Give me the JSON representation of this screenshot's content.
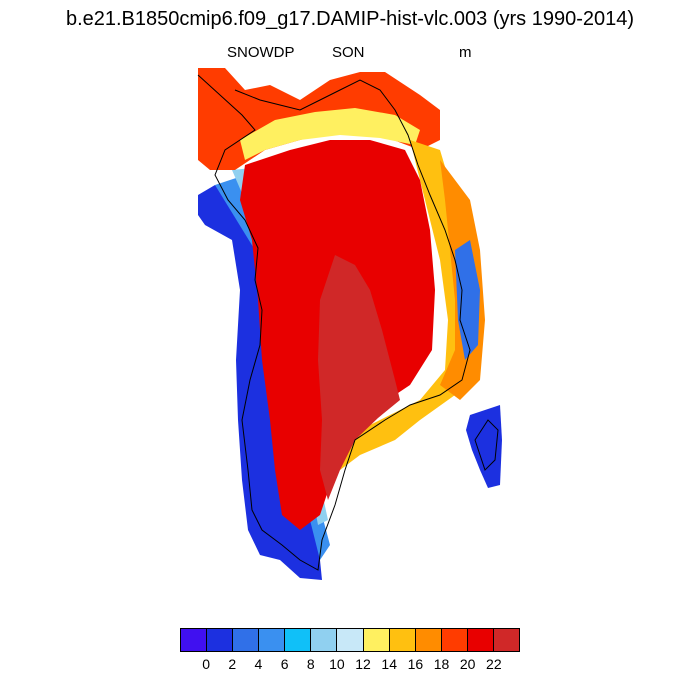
{
  "title": "b.e21.B1850cmip6.f09_g17.DAMIP-hist-vlc.003 (yrs 1990-2014)",
  "subtitle": {
    "variable": "SNOWDP",
    "season": "SON",
    "units": "m"
  },
  "colorbar": {
    "colors": [
      "#4010f0",
      "#1c30e0",
      "#3070e8",
      "#3a90f0",
      "#10c0f8",
      "#90d0f0",
      "#c8e8f8",
      "#fff060",
      "#ffc010",
      "#ff8c00",
      "#ff3c00",
      "#e80000",
      "#d02828"
    ],
    "labels": [
      "0",
      "2",
      "4",
      "6",
      "8",
      "10",
      "12",
      "14",
      "16",
      "18",
      "20",
      "22"
    ]
  }
}
